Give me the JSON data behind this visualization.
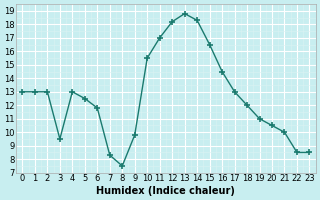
{
  "x": [
    0,
    1,
    2,
    3,
    4,
    5,
    6,
    7,
    8,
    9,
    10,
    11,
    12,
    13,
    14,
    15,
    16,
    17,
    18,
    19,
    20,
    21,
    22,
    23
  ],
  "y": [
    13,
    13,
    13,
    9.5,
    13,
    12.5,
    11.8,
    8.3,
    7.5,
    9.8,
    15.5,
    17,
    18.2,
    18.8,
    18.3,
    16.5,
    14.5,
    13,
    12,
    11,
    10.5,
    10,
    8.5,
    8.5
  ],
  "line_color": "#1a7a6e",
  "marker": "+",
  "marker_size": 5,
  "bg_color": "#c8eef0",
  "grid_color": "#ffffff",
  "xlabel": "Humidex (Indice chaleur)",
  "xlim": [
    -0.5,
    23.5
  ],
  "ylim": [
    7,
    19.5
  ],
  "yticks": [
    7,
    8,
    9,
    10,
    11,
    12,
    13,
    14,
    15,
    16,
    17,
    18,
    19
  ],
  "xticks": [
    0,
    1,
    2,
    3,
    4,
    5,
    6,
    7,
    8,
    9,
    10,
    11,
    12,
    13,
    14,
    15,
    16,
    17,
    18,
    19,
    20,
    21,
    22,
    23
  ],
  "xtick_labels": [
    "0",
    "1",
    "2",
    "3",
    "4",
    "5",
    "6",
    "7",
    "8",
    "9",
    "10",
    "11",
    "12",
    "13",
    "14",
    "15",
    "16",
    "17",
    "18",
    "19",
    "20",
    "21",
    "22",
    "23"
  ],
  "label_fontsize": 7,
  "tick_fontsize": 6
}
